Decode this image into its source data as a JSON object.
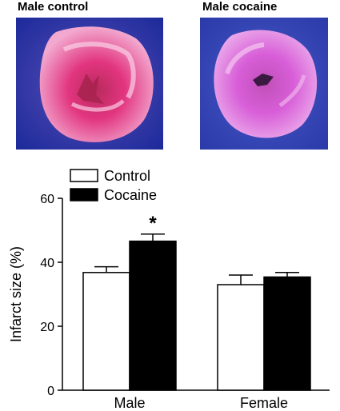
{
  "panels": [
    {
      "label": "Male control",
      "image": "heart-section-photo-control",
      "colors": {
        "stain": "#e2357f",
        "background": "#1c2a9a"
      }
    },
    {
      "label": "Male cocaine",
      "image": "heart-section-photo-cocaine",
      "colors": {
        "stain": "#d85ed8",
        "background": "#2a3aa8"
      }
    }
  ],
  "chart_data": {
    "type": "bar",
    "categories": [
      "Male",
      "Female"
    ],
    "series": [
      {
        "name": "Control",
        "values": [
          36.8,
          33.0
        ],
        "errors": [
          1.8,
          3.0
        ],
        "color": "#ffffff"
      },
      {
        "name": "Cocaine",
        "values": [
          46.6,
          35.4
        ],
        "errors": [
          2.2,
          1.4
        ],
        "color": "#000000"
      }
    ],
    "ylabel": "Infarct size (%)",
    "xlabel": "",
    "ylim": [
      0,
      60
    ],
    "yticks": [
      0,
      20,
      40,
      60
    ],
    "annotations": [
      {
        "text": "*",
        "category": "Male",
        "series": "Cocaine"
      }
    ],
    "legend": "top-left",
    "grid": false
  }
}
